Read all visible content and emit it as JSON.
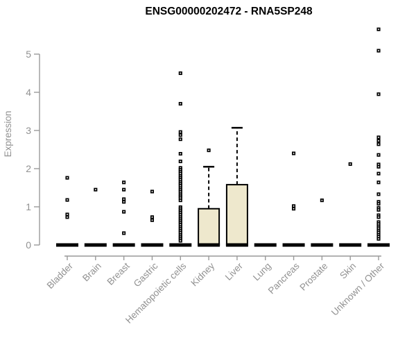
{
  "chart_data": {
    "type": "boxplot",
    "title": "ENSG00000202472 - RNA5SP248",
    "ylabel": "Expression",
    "xlabel": "",
    "ylim": [
      -0.3,
      5.8
    ],
    "yticks": [
      0,
      1,
      2,
      3,
      4,
      5
    ],
    "grid": false,
    "legend": "none",
    "x_label_rotation": 45,
    "categories": [
      "Bladder",
      "Brain",
      "Breast",
      "Gastric",
      "Hematopoietic cells",
      "Kidney",
      "Liver",
      "Lung",
      "Pancreas",
      "Prostate",
      "Skin",
      "Unknown / Other"
    ],
    "series": [
      {
        "category": "Bladder",
        "whisker_low": 0,
        "q1": 0,
        "median": 0,
        "q3": 0,
        "whisker_high": 0,
        "outliers": [
          1.76,
          1.18,
          0.8,
          0.73
        ]
      },
      {
        "category": "Brain",
        "whisker_low": 0,
        "q1": 0,
        "median": 0,
        "q3": 0,
        "whisker_high": 0,
        "outliers": [
          1.45
        ]
      },
      {
        "category": "Breast",
        "whisker_low": 0,
        "q1": 0,
        "median": 0,
        "q3": 0,
        "whisker_high": 0,
        "outliers": [
          1.64,
          1.45,
          1.2,
          1.13,
          0.87,
          0.31
        ]
      },
      {
        "category": "Gastric",
        "whisker_low": 0,
        "q1": 0,
        "median": 0,
        "q3": 0,
        "whisker_high": 0,
        "outliers": [
          1.4,
          0.73,
          0.65
        ]
      },
      {
        "category": "Hematopoietic cells",
        "whisker_low": 0,
        "q1": 0,
        "median": 0,
        "q3": 0,
        "whisker_high": 0,
        "outliers": [
          4.5,
          3.7,
          2.96,
          2.88,
          2.77,
          2.39,
          2.19,
          2.02,
          1.97,
          1.92,
          1.87,
          1.81,
          1.76,
          1.71,
          1.65,
          1.6,
          1.55,
          1.49,
          1.44,
          1.39,
          1.33,
          1.28,
          1.23,
          1.17,
          0.99,
          0.94,
          0.89,
          0.84,
          0.79,
          0.73,
          0.68,
          0.63,
          0.58,
          0.53,
          0.47,
          0.42,
          0.37,
          0.32,
          0.26,
          0.21,
          0.16,
          0.11
        ]
      },
      {
        "category": "Kidney",
        "whisker_low": 0,
        "q1": 0,
        "median": 0,
        "q3": 0.95,
        "whisker_high": 2.05,
        "outliers": [
          2.48
        ]
      },
      {
        "category": "Liver",
        "whisker_low": 0,
        "q1": 0,
        "median": 0,
        "q3": 1.58,
        "whisker_high": 3.07,
        "outliers": []
      },
      {
        "category": "Lung",
        "whisker_low": 0,
        "q1": 0,
        "median": 0,
        "q3": 0,
        "whisker_high": 0,
        "outliers": []
      },
      {
        "category": "Pancreas",
        "whisker_low": 0,
        "q1": 0,
        "median": 0,
        "q3": 0,
        "whisker_high": 0,
        "outliers": [
          2.4,
          1.02,
          0.95
        ]
      },
      {
        "category": "Prostate",
        "whisker_low": 0,
        "q1": 0,
        "median": 0,
        "q3": 0,
        "whisker_high": 0,
        "outliers": [
          1.17
        ]
      },
      {
        "category": "Skin",
        "whisker_low": 0,
        "q1": 0,
        "median": 0,
        "q3": 0,
        "whisker_high": 0,
        "outliers": [
          2.12
        ]
      },
      {
        "category": "Unknown / Other",
        "whisker_low": 0,
        "q1": 0,
        "median": 0,
        "q3": 0,
        "whisker_high": 0,
        "outliers": [
          5.65,
          5.09,
          3.95,
          2.82,
          2.73,
          2.64,
          2.36,
          2.11,
          2.05,
          1.87,
          1.64,
          1.33,
          1.13,
          1.08,
          0.97,
          0.92,
          0.78,
          0.73,
          0.6,
          0.55,
          0.49,
          0.44,
          0.38,
          0.33,
          0.27,
          0.22,
          0.16
        ]
      }
    ],
    "colors": {
      "background": "#FFFFFF",
      "title": "#000000",
      "axis_line": "#999999",
      "axis_text": "#919191",
      "box_fill": "#EEE8CD",
      "box_border": "#000000",
      "median": "#000000",
      "whisker": "#000000",
      "outlier": "#000000"
    }
  }
}
